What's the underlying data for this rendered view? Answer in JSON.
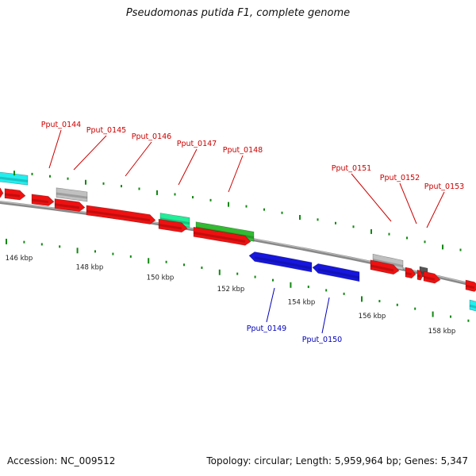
{
  "title": "Pseudomonas putida F1, complete genome",
  "footer": {
    "accession_label": "Accession: NC_009512",
    "stats_label": "Topology: circular; Length: 5,959,964 bp; Genes: 5,347"
  },
  "colors": {
    "forward_gene": "#ee1111",
    "reverse_gene": "#1616dd",
    "rna_cyan": "#22eeee",
    "rna_teal": "#22ee99",
    "green_gene": "#33bb33",
    "grey_feature": "#c0c0c0",
    "dark_feature": "#555555",
    "label_forward": "#cc0000",
    "label_reverse": "#0000bb",
    "ticks": "#118811",
    "backbone": "#888888"
  },
  "scale_labels": [
    "146 kbp",
    "148 kbp",
    "150 kbp",
    "152 kbp",
    "154 kbp",
    "156 kbp",
    "158 kbp"
  ],
  "gene_labels": [
    {
      "id": "Pput_0144",
      "strand": "forward"
    },
    {
      "id": "Pput_0145",
      "strand": "forward"
    },
    {
      "id": "Pput_0146",
      "strand": "forward"
    },
    {
      "id": "Pput_0147",
      "strand": "forward"
    },
    {
      "id": "Pput_0148",
      "strand": "forward"
    },
    {
      "id": "Pput_0151",
      "strand": "forward"
    },
    {
      "id": "Pput_0152",
      "strand": "forward"
    },
    {
      "id": "Pput_0153",
      "strand": "forward"
    },
    {
      "id": "Pput_0149",
      "strand": "reverse"
    },
    {
      "id": "Pput_0150",
      "strand": "reverse"
    }
  ]
}
